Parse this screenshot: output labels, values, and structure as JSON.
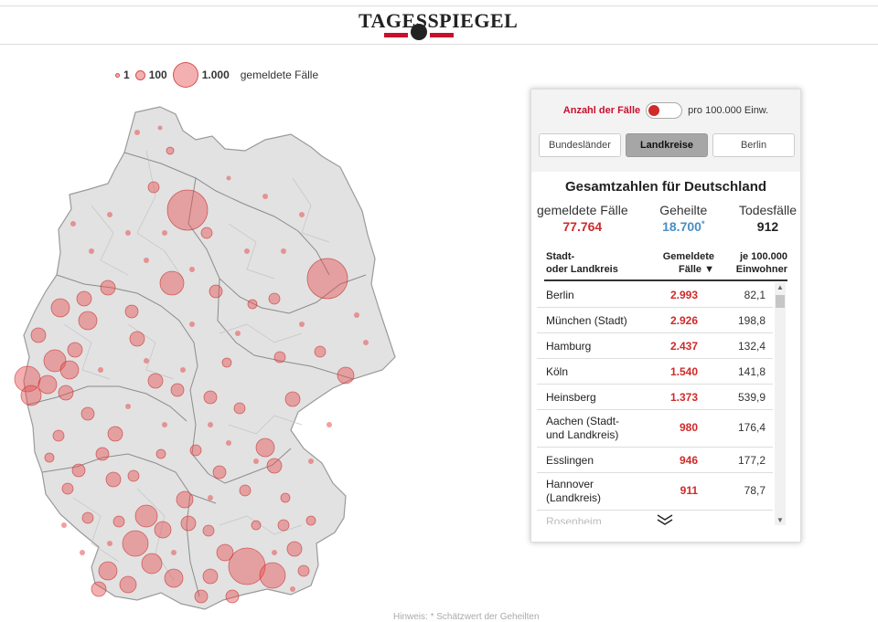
{
  "header": {
    "logo_text": "TAGESSPIEGEL"
  },
  "legend": {
    "items": [
      {
        "label": "1",
        "size": 1
      },
      {
        "label": "100",
        "size": 100
      },
      {
        "label": "1.000",
        "size": 1000
      }
    ],
    "unit": "gemeldete Fälle"
  },
  "panel": {
    "toggle": {
      "left": "Anzahl der Fälle",
      "right": "pro 100.000 Einw.",
      "state": "left"
    },
    "tabs": [
      {
        "label": "Bundesländer",
        "active": false
      },
      {
        "label": "Landkreise",
        "active": true
      },
      {
        "label": "Berlin",
        "active": false
      }
    ],
    "title": "Gesamtzahlen für Deutschland",
    "totals": {
      "reported": {
        "label": "gemeldete Fälle",
        "value": "77.764"
      },
      "recovered": {
        "label": "Geheilte",
        "value": "18.700",
        "mark": "*"
      },
      "deaths": {
        "label": "Todesfälle",
        "value": "912"
      }
    },
    "columns": {
      "region": [
        "Stadt-",
        "oder Landkreis"
      ],
      "cases": [
        "Gemeldete",
        "Fälle ▼"
      ],
      "per100k": [
        "je 100.000",
        "Einwohner"
      ]
    },
    "rows": [
      {
        "name": "Berlin",
        "cases": "2.993",
        "per100k": "82,1"
      },
      {
        "name": "München (Stadt)",
        "cases": "2.926",
        "per100k": "198,8"
      },
      {
        "name": "Hamburg",
        "cases": "2.437",
        "per100k": "132,4"
      },
      {
        "name": "Köln",
        "cases": "1.540",
        "per100k": "141,8"
      },
      {
        "name": "Heinsberg",
        "cases": "1.373",
        "per100k": "539,9"
      },
      {
        "name": "Aachen (Stadt- und Landkreis)",
        "cases": "980",
        "per100k": "176,4"
      },
      {
        "name": "Esslingen",
        "cases": "946",
        "per100k": "177,2"
      },
      {
        "name": "Hannover (Landkreis)",
        "cases": "911",
        "per100k": "78,7"
      },
      {
        "name": "Rosenheim",
        "cases": "",
        "per100k": ""
      }
    ]
  },
  "footnote": "Hinweis: * Schätzwert der Geheilten",
  "colors": {
    "accent": "#d02a2a",
    "blue": "#4a8ec2",
    "map_fill": "#e2e2e2",
    "bubble": "#e65050"
  }
}
